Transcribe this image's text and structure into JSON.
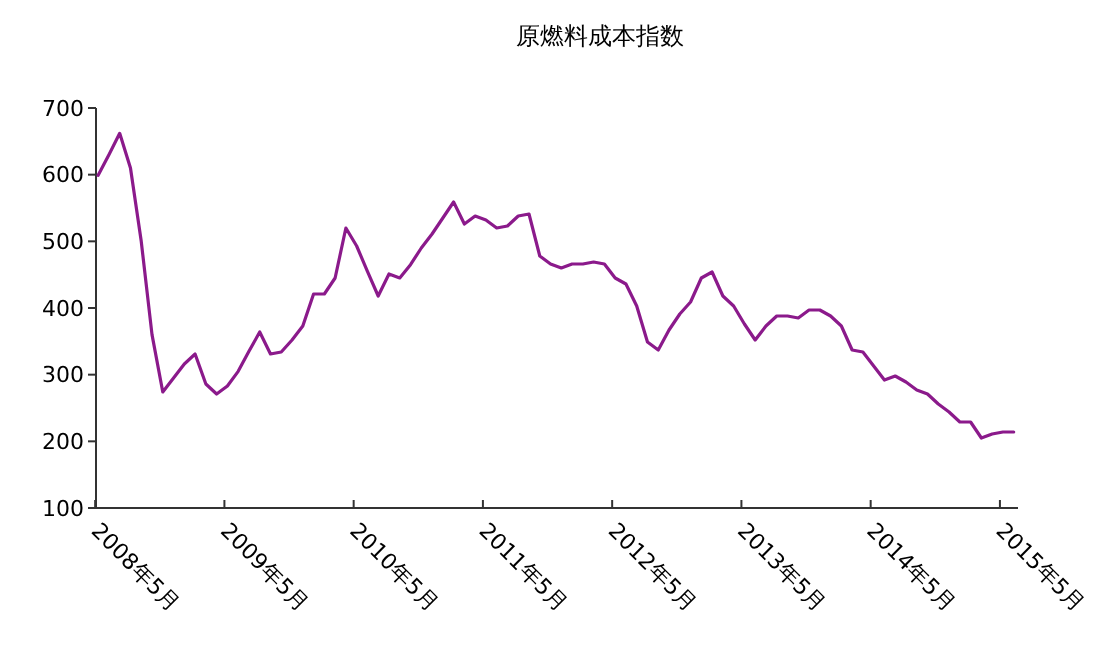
{
  "chart_data": {
    "type": "line",
    "title": "原燃料成本指数",
    "categories": [
      "2008年5月",
      null,
      null,
      null,
      null,
      null,
      null,
      null,
      null,
      null,
      null,
      null,
      "2009年5月",
      null,
      null,
      null,
      null,
      null,
      null,
      null,
      null,
      null,
      null,
      null,
      "2010年5月",
      null,
      null,
      null,
      null,
      null,
      null,
      null,
      null,
      null,
      null,
      null,
      "2011年5月",
      null,
      null,
      null,
      null,
      null,
      null,
      null,
      null,
      null,
      null,
      null,
      "2012年5月",
      null,
      null,
      null,
      null,
      null,
      null,
      null,
      null,
      null,
      null,
      null,
      "2013年5月",
      null,
      null,
      null,
      null,
      null,
      null,
      null,
      null,
      null,
      null,
      null,
      "2014年5月",
      null,
      null,
      null,
      null,
      null,
      null,
      null,
      null,
      null,
      null,
      null,
      "2015年5月",
      null
    ],
    "series": [
      {
        "color": "#8b1a8b",
        "values": [
          599,
          630,
          662,
          610,
          500,
          360,
          274,
          295,
          316,
          331,
          286,
          271,
          283,
          305,
          335,
          364,
          331,
          334,
          352,
          373,
          421,
          421,
          445,
          520,
          493,
          455,
          418,
          451,
          445,
          465,
          490,
          511,
          535,
          559,
          526,
          538,
          532,
          520,
          523,
          538,
          541,
          478,
          466,
          460,
          466,
          466,
          469,
          466,
          445,
          436,
          403,
          349,
          337,
          367,
          391,
          409,
          445,
          454,
          418,
          403,
          376,
          352,
          373,
          388,
          388,
          385,
          397,
          397,
          388,
          373,
          337,
          334,
          313,
          292,
          298,
          289,
          277,
          271,
          256,
          244,
          229,
          229,
          205,
          211,
          214,
          214
        ]
      }
    ],
    "ylim": [
      100,
      700
    ],
    "yticks": [
      100,
      200,
      300,
      400,
      500,
      600,
      700
    ],
    "marker": "none",
    "line_style": "solid"
  }
}
